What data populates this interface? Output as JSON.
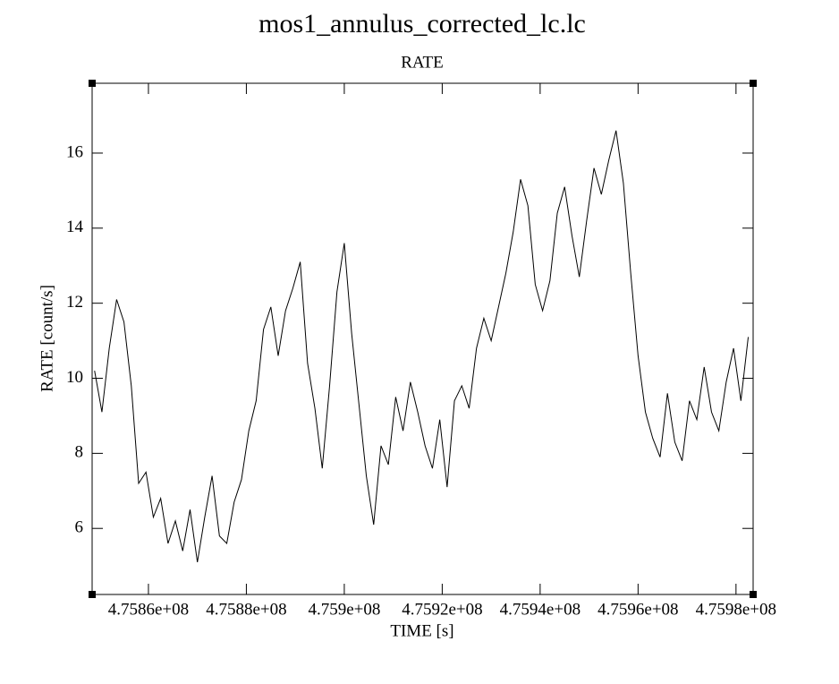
{
  "chart_data": {
    "type": "line",
    "title": "mos1_annulus_corrected_lc.lc",
    "subtitle": "RATE",
    "x_label": "TIME [s]",
    "y_label": "RATE [count/s]",
    "color": "#000000",
    "xlim": [
      475848500,
      475983500
    ],
    "ylim": [
      4.24,
      17.86
    ],
    "xticks": [
      {
        "value": 475860000,
        "label": "4.7586e+08"
      },
      {
        "value": 475880000,
        "label": "4.7588e+08"
      },
      {
        "value": 475900000,
        "label": "4.759e+08"
      },
      {
        "value": 475920000,
        "label": "4.7592e+08"
      },
      {
        "value": 475940000,
        "label": "4.7594e+08"
      },
      {
        "value": 475960000,
        "label": "4.7596e+08"
      },
      {
        "value": 475980000,
        "label": "4.7598e+08"
      }
    ],
    "yticks": [
      6,
      8,
      10,
      12,
      14,
      16
    ],
    "x": [
      475849000,
      475850500,
      475852000,
      475853500,
      475855000,
      475856500,
      475858000,
      475859500,
      475861000,
      475862500,
      475864000,
      475865500,
      475867000,
      475868500,
      475870000,
      475871500,
      475873000,
      475874500,
      475876000,
      475877500,
      475879000,
      475880500,
      475882000,
      475883500,
      475885000,
      475886500,
      475888000,
      475889500,
      475891000,
      475892500,
      475894000,
      475895500,
      475897000,
      475898500,
      475900000,
      475901500,
      475903000,
      475904500,
      475906000,
      475907500,
      475909000,
      475910500,
      475912000,
      475913500,
      475915000,
      475916500,
      475918000,
      475919500,
      475921000,
      475922500,
      475924000,
      475925500,
      475927000,
      475928500,
      475930000,
      475931500,
      475933000,
      475934500,
      475936000,
      475937500,
      475939000,
      475940500,
      475942000,
      475943500,
      475945000,
      475946500,
      475948000,
      475949500,
      475951000,
      475952500,
      475954000,
      475955500,
      475957000,
      475958500,
      475960000,
      475961500,
      475963000,
      475964500,
      475966000,
      475967500,
      475969000,
      475970500,
      475972000,
      475973500,
      475975000,
      475976500,
      475978000,
      475979500,
      475981000,
      475982500
    ],
    "values": [
      10.2,
      9.1,
      10.8,
      12.1,
      11.5,
      9.8,
      7.2,
      7.5,
      6.3,
      6.8,
      5.6,
      6.2,
      5.4,
      6.5,
      5.1,
      6.3,
      7.4,
      5.8,
      5.6,
      6.7,
      7.3,
      8.6,
      9.4,
      11.3,
      11.9,
      10.6,
      11.8,
      12.4,
      13.1,
      10.4,
      9.2,
      7.6,
      9.8,
      12.3,
      13.6,
      11.2,
      9.3,
      7.4,
      6.1,
      8.2,
      7.7,
      9.5,
      8.6,
      9.9,
      9.1,
      8.2,
      7.6,
      8.9,
      7.1,
      9.4,
      9.8,
      9.2,
      10.8,
      11.6,
      11.0,
      11.9,
      12.8,
      13.9,
      15.3,
      14.6,
      12.5,
      11.8,
      12.6,
      14.4,
      15.1,
      13.8,
      12.7,
      14.2,
      15.6,
      14.9,
      15.8,
      16.6,
      15.2,
      12.8,
      10.6,
      9.1,
      8.4,
      7.9,
      9.6,
      8.3,
      7.8,
      9.4,
      8.9,
      10.3,
      9.1,
      8.6,
      9.9,
      10.8,
      9.4,
      11.1
    ]
  }
}
